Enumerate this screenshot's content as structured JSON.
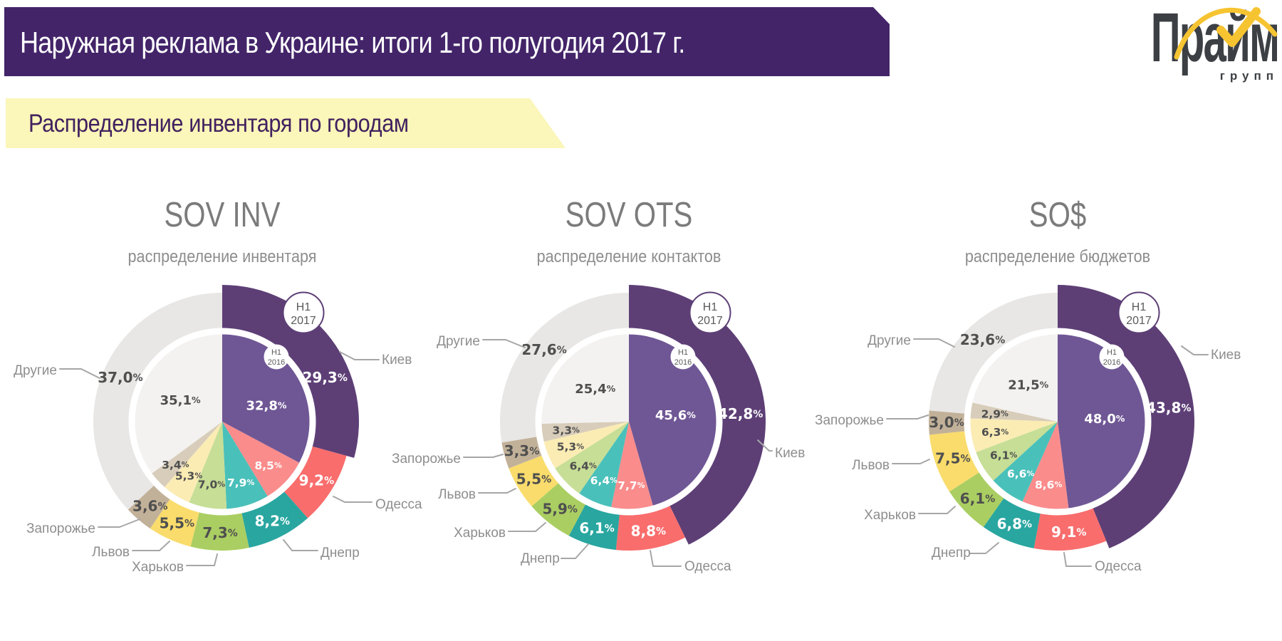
{
  "header": {
    "title": "Наружная реклама в Украине: итоги 1-го полугодия 2017 г."
  },
  "logo": {
    "brand": "Прайм",
    "sub": "групп"
  },
  "section": {
    "title": "Распределение инвентаря по городам"
  },
  "legend_badges": {
    "current_line1": "H1",
    "current_line2": "2017",
    "previous_line1": "H1",
    "previous_line2": "2016"
  },
  "palette": {
    "header_bg": "#432469",
    "section_bg": "#FBF6B9",
    "section_text": "#41215F",
    "logo_accent": "#F6C431",
    "ring_2017": [
      "#5D3F76",
      "#F96D6D",
      "#29A6A0",
      "#AACE62",
      "#F9DC6C",
      "#C2B199",
      "#E8E7E5"
    ],
    "ring_2016": [
      "#6F5795",
      "#FA8C8C",
      "#4AC0BA",
      "#C6DE96",
      "#FBECB4",
      "#D8CDBA",
      "#F3F2F0"
    ],
    "value_dark": "#4F4F4F",
    "value_light": "#FFFFFF",
    "city_label": "#8E8E8E",
    "leader_line": "#A6A6A6",
    "badge_border": "#5D3F76",
    "badge_text": "#5A5A5A"
  },
  "chart_data": [
    {
      "type": "nested-donut",
      "title": "SOV INV",
      "subtitle": "распределение инвентаря",
      "categories": [
        "Киев",
        "Одесса",
        "Днепр",
        "Харьков",
        "Львов",
        "Запорожье",
        "Другие"
      ],
      "series": [
        {
          "name": "H1 2017",
          "position": "outer-ring",
          "values": [
            29.3,
            9.2,
            8.2,
            7.3,
            5.5,
            3.6,
            37.0
          ]
        },
        {
          "name": "H1 2016",
          "position": "inner-pie",
          "values": [
            32.8,
            8.5,
            7.9,
            7.0,
            5.3,
            3.4,
            35.1
          ]
        }
      ]
    },
    {
      "type": "nested-donut",
      "title": "SOV OTS",
      "subtitle": "распределение контактов",
      "categories": [
        "Киев",
        "Одесса",
        "Днепр",
        "Харьков",
        "Львов",
        "Запорожье",
        "Другие"
      ],
      "series": [
        {
          "name": "H1 2017",
          "position": "outer-ring",
          "values": [
            42.8,
            8.8,
            6.1,
            5.9,
            5.5,
            3.3,
            27.6
          ]
        },
        {
          "name": "H1 2016",
          "position": "inner-pie",
          "values": [
            45.6,
            7.7,
            6.4,
            6.4,
            5.3,
            3.3,
            25.4
          ]
        }
      ]
    },
    {
      "type": "nested-donut",
      "title": "SO$",
      "subtitle": "распределение бюджетов",
      "categories": [
        "Киев",
        "Одесса",
        "Днепр",
        "Харьков",
        "Львов",
        "Запорожье",
        "Другие"
      ],
      "series": [
        {
          "name": "H1 2017",
          "position": "outer-ring",
          "values": [
            43.8,
            9.1,
            6.8,
            6.1,
            7.5,
            3.0,
            23.6
          ]
        },
        {
          "name": "H1 2016",
          "position": "inner-pie",
          "values": [
            48.0,
            8.6,
            6.6,
            6.1,
            6.3,
            2.9,
            21.5
          ]
        }
      ]
    }
  ]
}
